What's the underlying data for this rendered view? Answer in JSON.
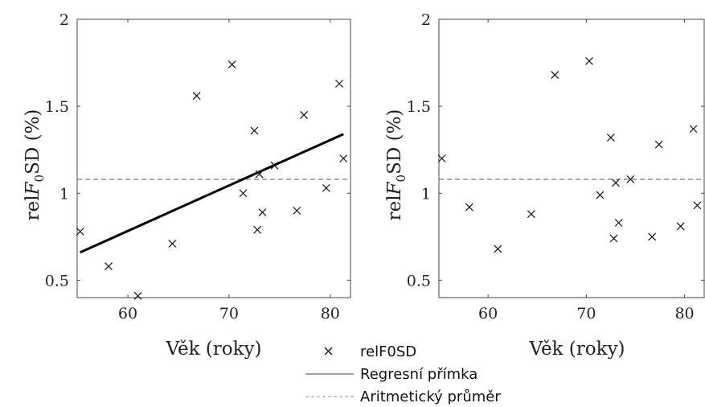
{
  "chart_data": [
    {
      "type": "scatter",
      "xlabel": "Věk (roky)",
      "ylabel_main": "rel",
      "ylabel_italic": "F",
      "ylabel_sub": "0",
      "ylabel_rest": "SD (%)",
      "xlim": [
        55,
        82
      ],
      "ylim": [
        0.4,
        2
      ],
      "xticks": [
        "60",
        "70",
        "80"
      ],
      "yticks": [
        "0.5",
        "1",
        "1.5",
        "2"
      ],
      "series": [
        {
          "name": "relF0SD",
          "x": [
            55.3,
            58.1,
            61.0,
            64.4,
            66.8,
            70.3,
            71.4,
            72.5,
            72.8,
            73.0,
            73.3,
            74.5,
            76.7,
            77.4,
            79.6,
            80.9,
            81.3
          ],
          "y": [
            0.78,
            0.58,
            0.41,
            0.71,
            1.56,
            1.74,
            1.0,
            1.36,
            0.79,
            1.11,
            0.89,
            1.16,
            0.9,
            1.45,
            1.03,
            1.63,
            1.2
          ]
        }
      ],
      "regression_line": {
        "x": [
          55.3,
          81.3
        ],
        "y": [
          0.66,
          1.34
        ]
      },
      "mean_line": 1.08
    },
    {
      "type": "scatter",
      "xlabel": "Věk (roky)",
      "ylabel_main": "rel",
      "ylabel_italic": "F",
      "ylabel_sub": "0",
      "ylabel_rest": "SD (%)",
      "xlim": [
        55,
        82
      ],
      "ylim": [
        0.4,
        2
      ],
      "xticks": [
        "60",
        "70",
        "80"
      ],
      "yticks": [
        "0.5",
        "1",
        "1.5",
        "2"
      ],
      "series": [
        {
          "name": "relF0SD",
          "x": [
            55.3,
            58.1,
            61.0,
            64.4,
            66.8,
            70.3,
            71.4,
            72.5,
            72.8,
            73.0,
            73.3,
            74.5,
            76.7,
            77.4,
            79.6,
            80.9,
            81.3
          ],
          "y": [
            1.2,
            0.92,
            0.68,
            0.88,
            1.68,
            1.76,
            0.99,
            1.32,
            0.74,
            1.06,
            0.83,
            1.08,
            0.75,
            1.28,
            0.81,
            1.37,
            0.93
          ]
        }
      ],
      "mean_line": 1.08
    }
  ],
  "legend": {
    "scatter_label": "relF0SD",
    "regression_label": "Regresní přímka",
    "mean_label": "Aritmetický průměr"
  }
}
